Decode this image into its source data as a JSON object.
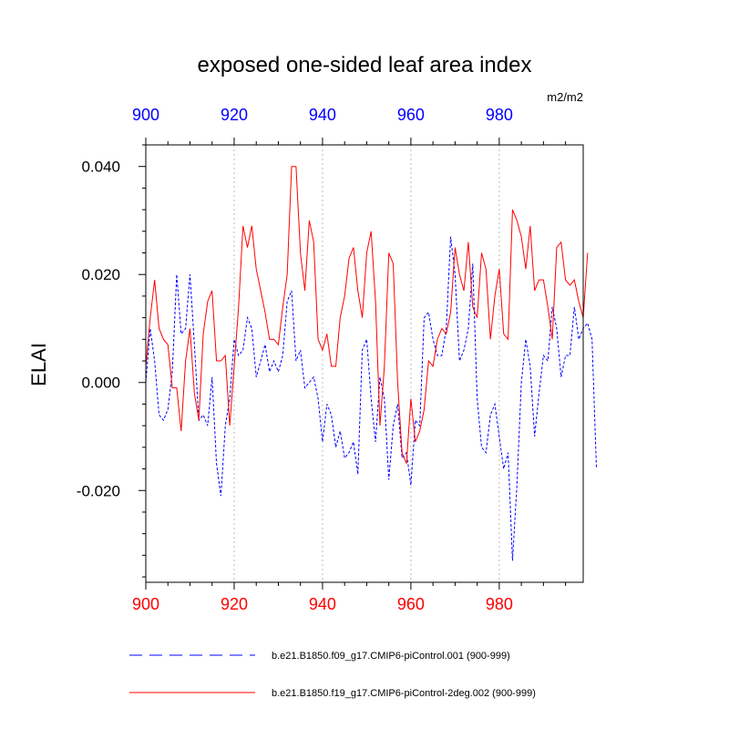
{
  "chart_data": {
    "type": "line",
    "title": "exposed one-sided leaf area index",
    "units": "m2/m2",
    "ylabel": "ELAI",
    "xlabel": "",
    "xlim": [
      900,
      999
    ],
    "ylim": [
      -0.037,
      0.044
    ],
    "x_ticks": [
      900,
      920,
      940,
      960,
      980
    ],
    "x_tick_labels": [
      "900",
      "920",
      "940",
      "960",
      "980"
    ],
    "y_ticks": [
      0.04,
      0.02,
      0.0,
      -0.02
    ],
    "y_tick_labels": [
      "0.040",
      "0.020",
      "0.000",
      "-0.020"
    ],
    "bottom_axis_color": "#ff0000",
    "top_axis_color": "#0000ff",
    "series": [
      {
        "name": "b.e21.B1850.f09_g17.CMIP6-piControl.001 (900-999)",
        "color": "#0000ff",
        "dash": "dashed",
        "x_start": 900,
        "values": [
          0.0,
          0.01,
          0.004,
          -0.006,
          -0.007,
          -0.005,
          0.002,
          0.02,
          0.009,
          0.01,
          0.02,
          0.007,
          -0.007,
          -0.006,
          -0.008,
          0.001,
          -0.015,
          -0.021,
          -0.008,
          -0.003,
          0.008,
          0.005,
          0.006,
          0.012,
          0.01,
          0.001,
          0.004,
          0.007,
          0.002,
          0.004,
          0.002,
          0.005,
          0.015,
          0.017,
          0.004,
          0.006,
          -0.001,
          0.0,
          0.001,
          -0.003,
          -0.011,
          -0.004,
          -0.006,
          -0.012,
          -0.009,
          -0.014,
          -0.013,
          -0.011,
          -0.017,
          0.006,
          0.008,
          -0.003,
          -0.011,
          0.001,
          -0.003,
          -0.018,
          -0.008,
          -0.004,
          -0.014,
          -0.013,
          -0.019,
          -0.007,
          -0.008,
          0.012,
          0.013,
          0.008,
          0.005,
          0.005,
          0.01,
          0.027,
          0.02,
          0.004,
          0.006,
          0.01,
          0.022,
          -0.003,
          -0.012,
          -0.013,
          -0.006,
          -0.004,
          -0.01,
          -0.016,
          -0.013,
          -0.033,
          -0.019,
          0.0,
          0.008,
          0.003,
          -0.01,
          -0.002,
          0.005,
          0.004,
          0.014,
          0.01,
          0.001,
          0.005,
          0.005,
          0.014,
          0.008,
          0.01,
          0.011,
          0.008,
          -0.016
        ]
      },
      {
        "name": "b.e21.B1850.f19_g17.CMIP6-piControl-2deg.002 (900-999)",
        "color": "#ff0000",
        "dash": "solid",
        "x_start": 900,
        "values": [
          0.003,
          0.012,
          0.019,
          0.01,
          0.008,
          0.007,
          -0.001,
          -0.001,
          -0.009,
          0.004,
          0.01,
          -0.002,
          -0.007,
          0.009,
          0.015,
          0.017,
          0.004,
          0.004,
          0.005,
          -0.008,
          0.003,
          0.014,
          0.029,
          0.025,
          0.029,
          0.021,
          0.017,
          0.013,
          0.008,
          0.008,
          0.007,
          0.014,
          0.02,
          0.04,
          0.04,
          0.024,
          0.017,
          0.03,
          0.026,
          0.008,
          0.006,
          0.009,
          0.003,
          0.003,
          0.012,
          0.016,
          0.023,
          0.025,
          0.017,
          0.012,
          0.024,
          0.028,
          0.015,
          -0.008,
          0.003,
          0.024,
          0.022,
          0.0,
          -0.013,
          -0.015,
          -0.003,
          -0.011,
          -0.009,
          -0.005,
          0.004,
          0.003,
          0.008,
          0.01,
          0.009,
          0.013,
          0.025,
          0.02,
          0.017,
          0.026,
          0.014,
          0.012,
          0.024,
          0.021,
          0.008,
          0.016,
          0.021,
          0.009,
          0.008,
          0.032,
          0.03,
          0.027,
          0.021,
          0.029,
          0.017,
          0.019,
          0.019,
          0.014,
          0.008,
          0.025,
          0.026,
          0.019,
          0.018,
          0.019,
          0.015,
          0.012,
          0.024
        ]
      }
    ],
    "legend": [
      {
        "label": "b.e21.B1850.f09_g17.CMIP6-piControl.001 (900-999)",
        "color": "#0000ff",
        "dash": "dashed"
      },
      {
        "label": "b.e21.B1850.f19_g17.CMIP6-piControl-2deg.002 (900-999)",
        "color": "#ff0000",
        "dash": "solid"
      }
    ],
    "legend_position": "bottom",
    "grid": "vertical-dotted"
  }
}
